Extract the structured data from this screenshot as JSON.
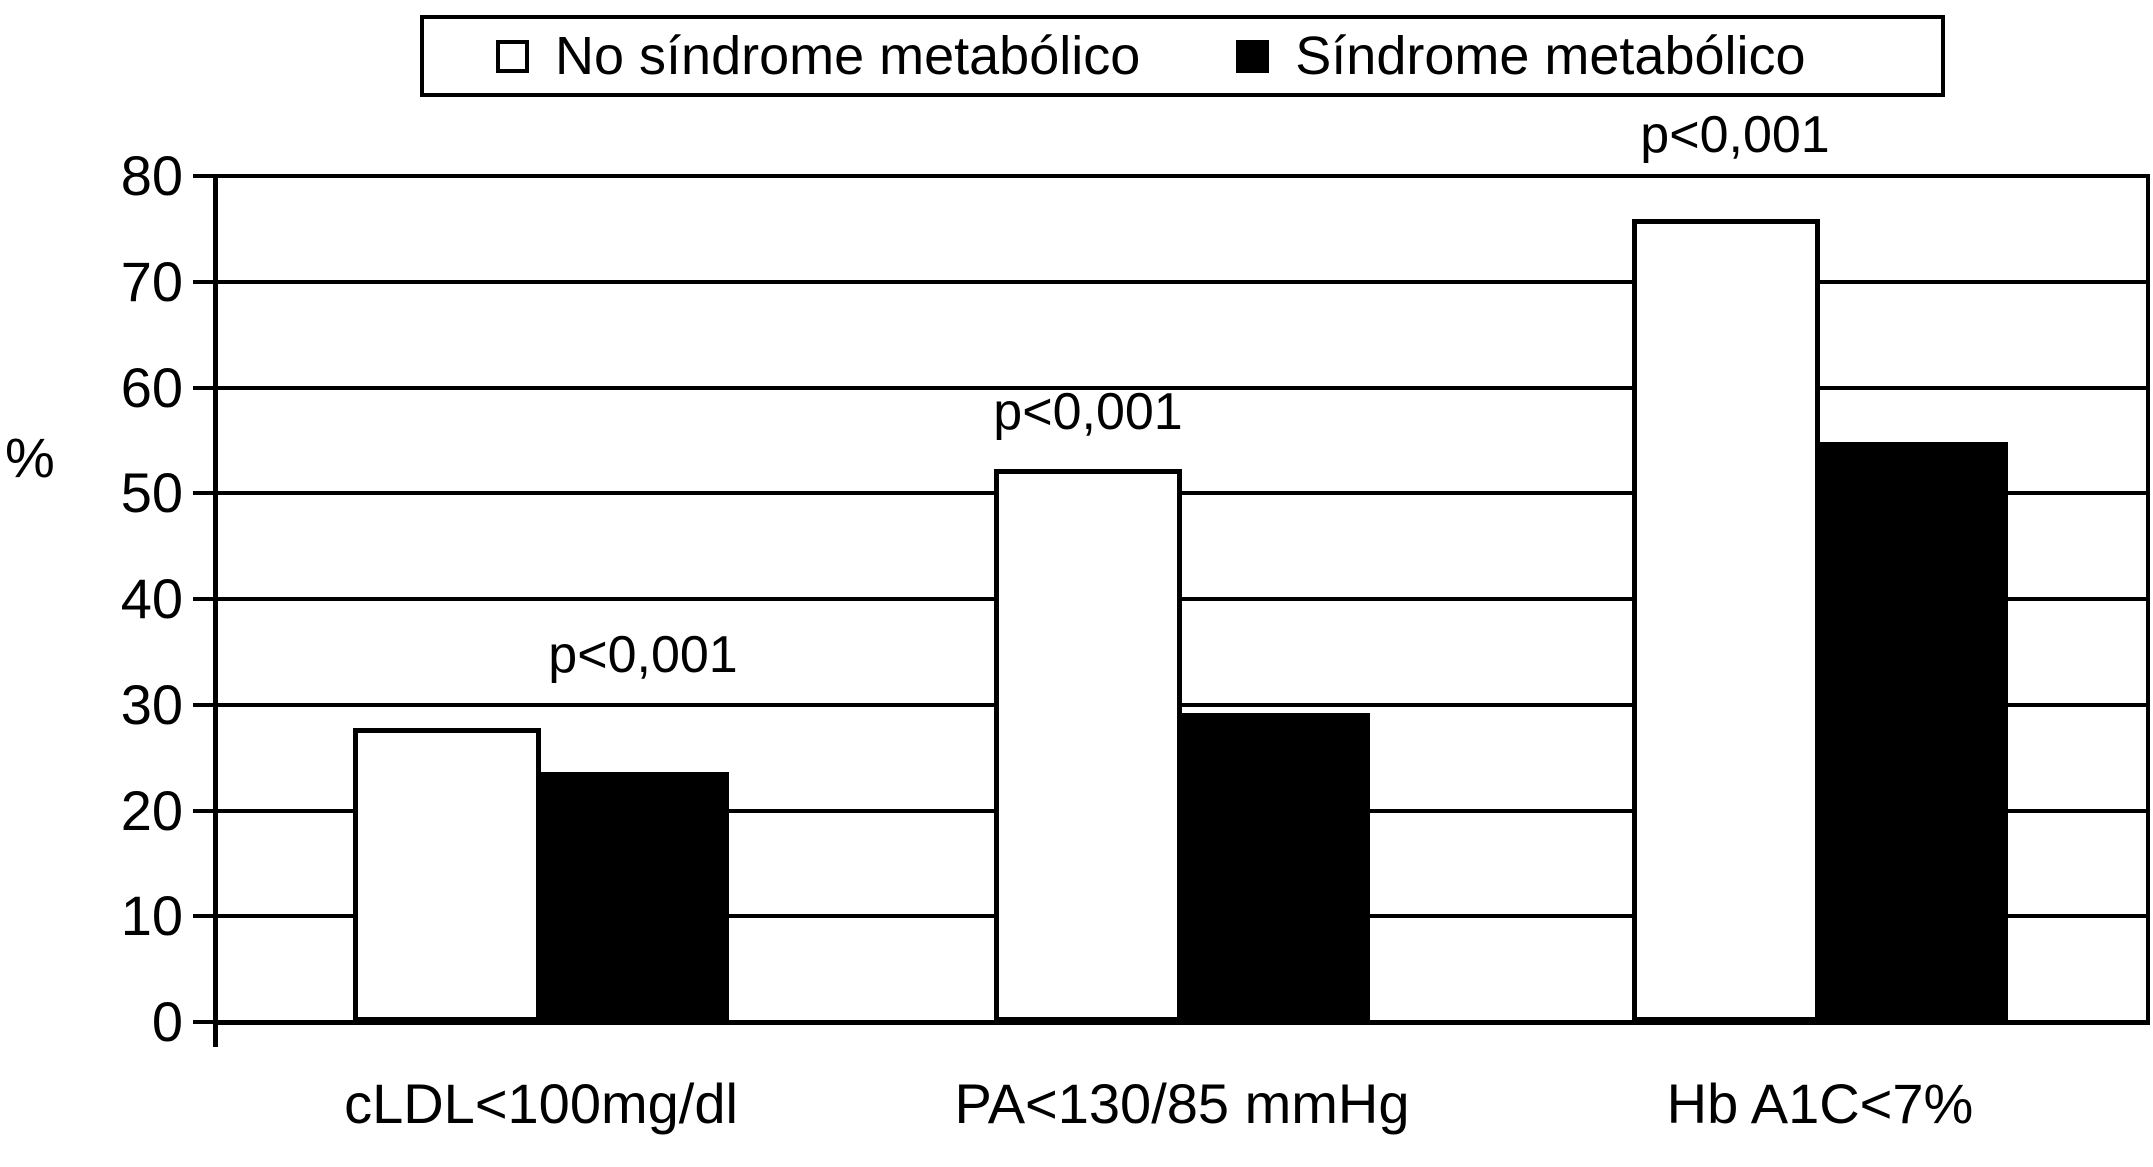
{
  "figure": {
    "background_color": "#ffffff",
    "ink_color": "#000000"
  },
  "chart_data": {
    "type": "bar",
    "title": "",
    "xlabel": "",
    "ylabel": "%",
    "categories": [
      "cLDL<100mg/dl",
      "PA<130/85 mmHg",
      "Hb A1C<7%"
    ],
    "series": [
      {
        "name": "No síndrome metabólico",
        "fill": "#ffffff",
        "values": [
          27.8,
          52.3,
          75.9
        ]
      },
      {
        "name": "Síndrome metabólico",
        "fill": "#000000",
        "values": [
          23.6,
          29.2,
          54.8
        ]
      }
    ],
    "annotations": [
      {
        "text": "p<0,001",
        "group_index": 0
      },
      {
        "text": "p<0,001",
        "group_index": 1
      },
      {
        "text": "p<0,001",
        "group_index": 2
      }
    ],
    "ylim": [
      0,
      80
    ],
    "ytick_step": 10,
    "yticks": [
      0,
      10,
      20,
      30,
      40,
      50,
      60,
      70,
      80
    ],
    "grid": "horizontal",
    "legend_position": "top"
  }
}
